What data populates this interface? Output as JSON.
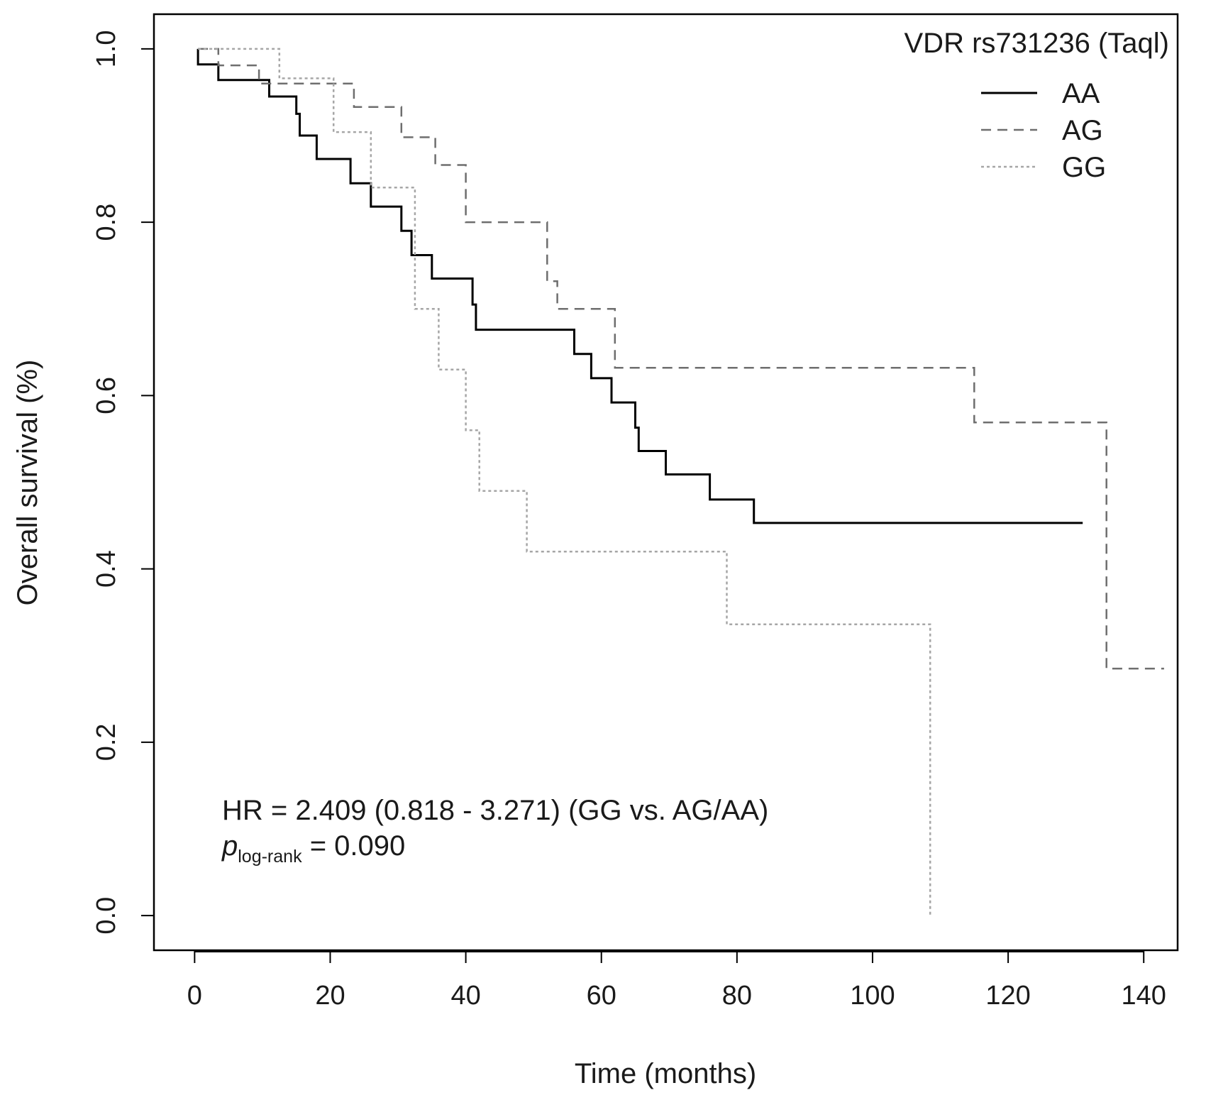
{
  "chart_data": {
    "type": "line",
    "subtype": "kaplan-meier",
    "xlabel": "Time (months)",
    "ylabel": "Overall survival (%)",
    "xlim": [
      -6,
      145
    ],
    "ylim": [
      -0.04,
      1.04
    ],
    "xticks": [
      0,
      20,
      40,
      60,
      80,
      100,
      120,
      140
    ],
    "yticks": [
      "0.0",
      "0.2",
      "0.4",
      "0.6",
      "0.8",
      "1.0"
    ],
    "legend": {
      "title": "VDR rs731236 (Taql)",
      "position": "top-right",
      "entries": [
        "AA",
        "AG",
        "GG"
      ]
    },
    "series": [
      {
        "name": "AA",
        "color": "#000000",
        "linestyle": "solid",
        "points": [
          [
            0.5,
            1.0
          ],
          [
            0.5,
            0.982
          ],
          [
            3.5,
            0.982
          ],
          [
            3.5,
            0.964
          ],
          [
            11,
            0.964
          ],
          [
            11,
            0.945
          ],
          [
            15,
            0.945
          ],
          [
            15,
            0.925
          ],
          [
            15.5,
            0.925
          ],
          [
            15.5,
            0.9
          ],
          [
            18,
            0.9
          ],
          [
            18,
            0.873
          ],
          [
            23,
            0.873
          ],
          [
            23,
            0.845
          ],
          [
            26,
            0.845
          ],
          [
            26,
            0.818
          ],
          [
            30.5,
            0.818
          ],
          [
            30.5,
            0.79
          ],
          [
            32,
            0.79
          ],
          [
            32,
            0.762
          ],
          [
            35,
            0.762
          ],
          [
            35,
            0.735
          ],
          [
            41,
            0.735
          ],
          [
            41,
            0.705
          ],
          [
            41.5,
            0.705
          ],
          [
            41.5,
            0.676
          ],
          [
            56,
            0.676
          ],
          [
            56,
            0.648
          ],
          [
            58.5,
            0.648
          ],
          [
            58.5,
            0.62
          ],
          [
            61.5,
            0.62
          ],
          [
            61.5,
            0.592
          ],
          [
            65,
            0.592
          ],
          [
            65,
            0.563
          ],
          [
            65.5,
            0.563
          ],
          [
            65.5,
            0.536
          ],
          [
            69.5,
            0.536
          ],
          [
            69.5,
            0.509
          ],
          [
            76,
            0.509
          ],
          [
            76,
            0.48
          ],
          [
            82.5,
            0.48
          ],
          [
            82.5,
            0.453
          ],
          [
            131,
            0.453
          ]
        ]
      },
      {
        "name": "AG",
        "color": "#6e6e6e",
        "linestyle": "dashed",
        "points": [
          [
            0.5,
            1.0
          ],
          [
            3.5,
            1.0
          ],
          [
            3.5,
            0.981
          ],
          [
            9.5,
            0.981
          ],
          [
            9.5,
            0.96
          ],
          [
            23.5,
            0.96
          ],
          [
            23.5,
            0.933
          ],
          [
            30.5,
            0.933
          ],
          [
            30.5,
            0.898
          ],
          [
            35.5,
            0.898
          ],
          [
            35.5,
            0.866
          ],
          [
            40,
            0.866
          ],
          [
            40,
            0.8
          ],
          [
            52,
            0.8
          ],
          [
            52,
            0.732
          ],
          [
            53.5,
            0.732
          ],
          [
            53.5,
            0.7
          ],
          [
            62,
            0.7
          ],
          [
            62,
            0.632
          ],
          [
            115,
            0.632
          ],
          [
            115,
            0.569
          ],
          [
            134.5,
            0.569
          ],
          [
            134.5,
            0.285
          ],
          [
            143,
            0.285
          ]
        ]
      },
      {
        "name": "GG",
        "color": "#a6a6a6",
        "linestyle": "dotted",
        "points": [
          [
            0.5,
            1.0
          ],
          [
            12.5,
            1.0
          ],
          [
            12.5,
            0.966
          ],
          [
            20.5,
            0.966
          ],
          [
            20.5,
            0.904
          ],
          [
            26,
            0.904
          ],
          [
            26,
            0.84
          ],
          [
            32.5,
            0.84
          ],
          [
            32.5,
            0.7
          ],
          [
            36,
            0.7
          ],
          [
            36,
            0.63
          ],
          [
            40,
            0.63
          ],
          [
            40,
            0.56
          ],
          [
            42,
            0.56
          ],
          [
            42,
            0.49
          ],
          [
            49,
            0.49
          ],
          [
            49,
            0.42
          ],
          [
            78.5,
            0.42
          ],
          [
            78.5,
            0.336
          ],
          [
            108.5,
            0.336
          ],
          [
            108.5,
            0.0
          ]
        ]
      }
    ],
    "annotation": {
      "hr_text": "HR = 2.409 (0.818 - 3.271) (GG vs. AG/AA)",
      "p_symbol": "p",
      "p_subscript": "log-rank",
      "p_value_text": " = 0.090"
    }
  }
}
